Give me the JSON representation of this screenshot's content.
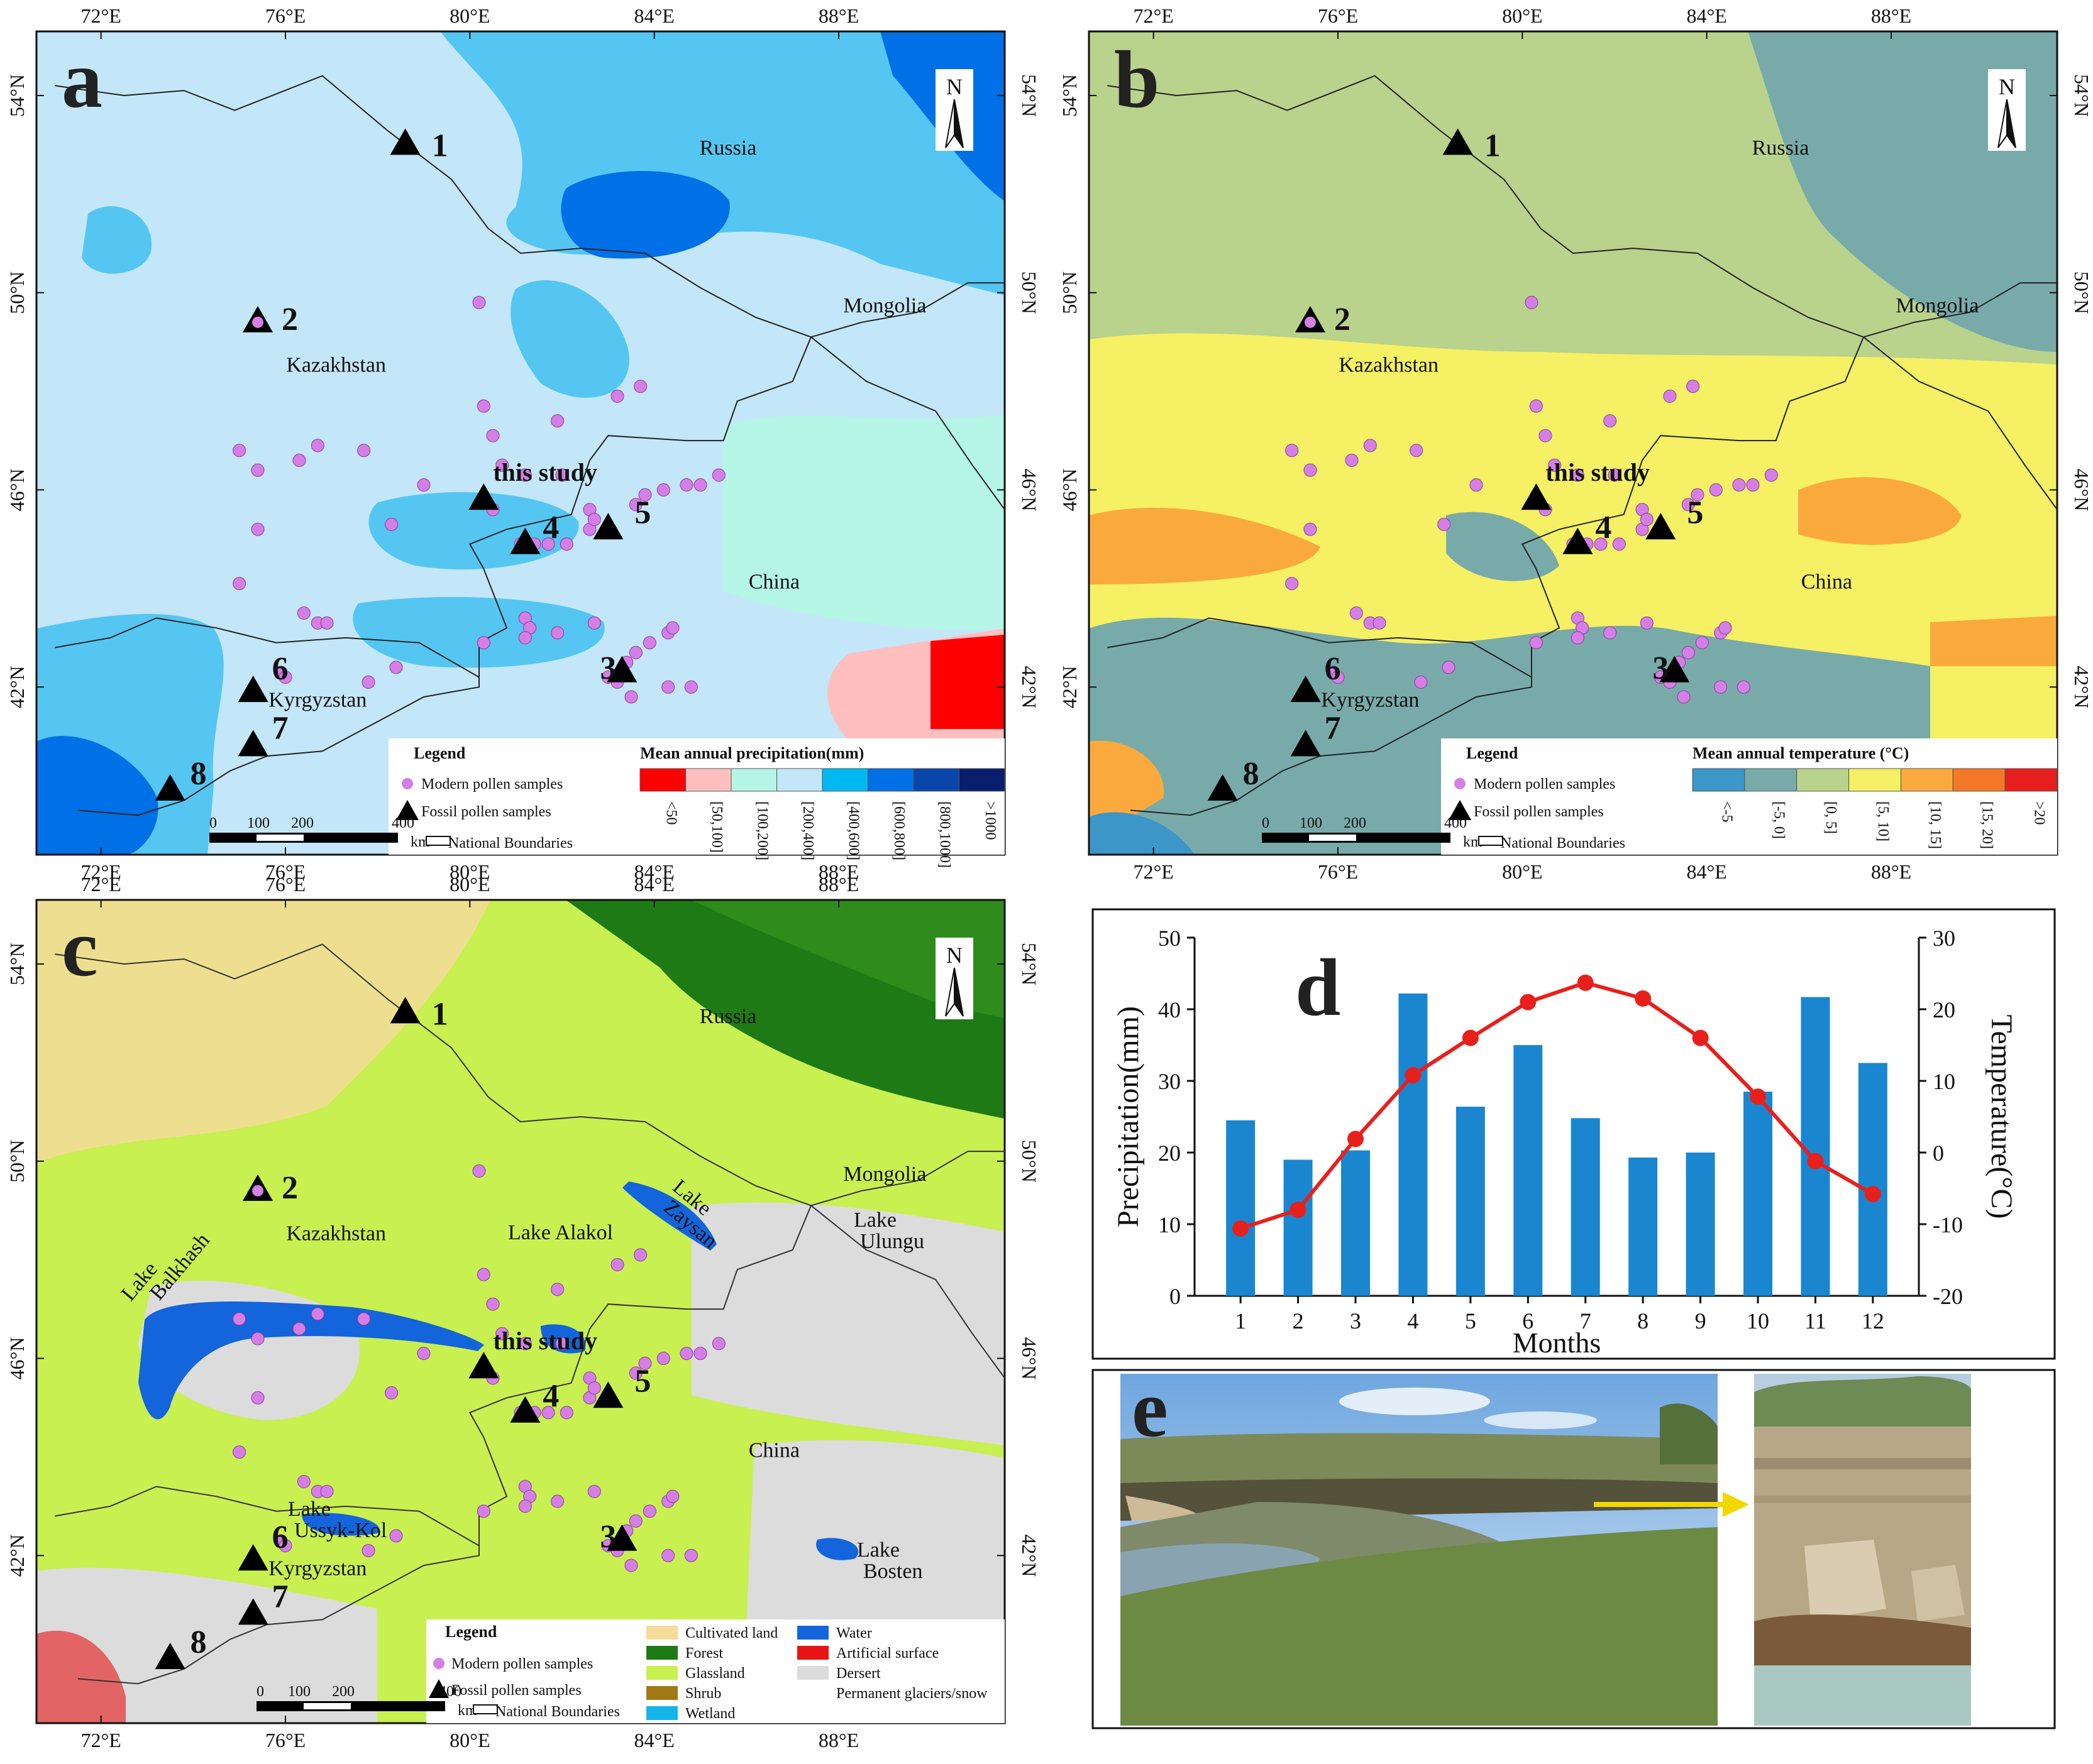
{
  "ticks": {
    "lon": [
      "72°E",
      "76°E",
      "80°E",
      "84°E",
      "88°E"
    ],
    "lat": [
      "54°N",
      "50°N",
      "46°N",
      "42°N"
    ]
  },
  "countries": {
    "russia": "Russia",
    "kazakhstan": "Kazakhstan",
    "mongolia": "Mongolia",
    "china": "China",
    "kyrgyzstan": "Kyrgyzstan"
  },
  "north": "N",
  "sites": {
    "s1": "1",
    "s2": "2",
    "s3": "3",
    "s4": "4",
    "s5": "5",
    "s6": "6",
    "s7": "7",
    "s8": "8",
    "study": "this study"
  },
  "panel_a": {
    "letter": "a",
    "legend_title": "Legend",
    "modern": "Modern pollen samples",
    "fossil": "Fossil pollen samples",
    "boundaries": "National Boundaries",
    "scale": [
      "0",
      "100",
      "200",
      "400",
      "km"
    ],
    "scale_title": "Mean annual precipitation(mm)",
    "classes": [
      "<50",
      "[50,100]",
      "[100,200]",
      "[200,400]",
      "[400,600]",
      "[600,800]",
      "[800,1000]",
      ">1000"
    ],
    "colors": [
      "#ff0000",
      "#ffbfbf",
      "#b4f5e6",
      "#c3e6f8",
      "#00b9f0",
      "#0070e6",
      "#0a46aa",
      "#0a1e6e"
    ]
  },
  "panel_b": {
    "letter": "b",
    "legend_title": "Legend",
    "modern": "Modern pollen samples",
    "fossil": "Fossil pollen samples",
    "boundaries": "National Boundaries",
    "scale": [
      "0",
      "100",
      "200",
      "400",
      "km"
    ],
    "scale_title": "Mean annual temperature (°C)",
    "classes": [
      "<-5",
      "[-5, 0]",
      "[0, 5]",
      "[5, 10]",
      "[10, 15]",
      "[15, 20]",
      ">20"
    ],
    "colors": [
      "#3c96c8",
      "#78aaaa",
      "#b9d28c",
      "#f5f064",
      "#faaa3c",
      "#f57828",
      "#e61e1e"
    ]
  },
  "panel_c": {
    "letter": "c",
    "legend_title": "Legend",
    "modern": "Modern pollen samples",
    "fossil": "Fossil pollen samples",
    "boundaries": "National Boundaries",
    "scale": [
      "0",
      "100",
      "200",
      "400",
      "km"
    ],
    "landcover": [
      {
        "label": "Cultivated land",
        "color": "#f5dc9b"
      },
      {
        "label": "Forest",
        "color": "#1e7a14"
      },
      {
        "label": "Glassland",
        "color": "#c8f050"
      },
      {
        "label": "Shrub",
        "color": "#a07814"
      },
      {
        "label": "Wetland",
        "color": "#14b4e6"
      },
      {
        "label": "Water",
        "color": "#1464dc"
      },
      {
        "label": "Artificial surface",
        "color": "#e61414"
      },
      {
        "label": "Dersert",
        "color": "#dcdcdc"
      },
      {
        "label": "Permanent glaciers/snow",
        "color": "#ffffff"
      }
    ],
    "lakes": {
      "balkhash": "Lake Balkhash",
      "zaysan": "Lake Zaysan",
      "alakol": "Lake Alakol",
      "ulungu": "Lake Ulungu",
      "issyk": "Lake Ussyk-Kol",
      "bosten": "Lake Bosten"
    }
  },
  "panel_d": {
    "letter": "d",
    "ylabel": "Precipitation(mm)",
    "y2label": "Temperature(°C)",
    "xlabel": "Months"
  },
  "panel_e": {
    "letter": "e"
  },
  "chart_data": {
    "type": "bar",
    "categories": [
      "1",
      "2",
      "3",
      "4",
      "5",
      "6",
      "7",
      "8",
      "9",
      "10",
      "11",
      "12"
    ],
    "series": [
      {
        "name": "Precipitation(mm)",
        "type": "bar",
        "axis": "left",
        "values": [
          24.5,
          19.0,
          20.3,
          42.2,
          26.4,
          35.0,
          24.8,
          19.3,
          20.0,
          28.5,
          41.7,
          32.5
        ]
      },
      {
        "name": "Temperature(°C)",
        "type": "line",
        "axis": "right",
        "values": [
          -10.6,
          -8.0,
          1.9,
          10.8,
          16.0,
          21.0,
          23.7,
          21.5,
          16.0,
          7.8,
          -1.2,
          -5.8
        ]
      }
    ],
    "ylim": [
      0,
      50
    ],
    "y2lim": [
      -20,
      30
    ],
    "yticks": [
      0,
      10,
      20,
      30,
      40,
      50
    ],
    "y2ticks": [
      -20,
      -10,
      0,
      10,
      20,
      30
    ],
    "xlabel": "Months",
    "ylabel": "Precipitation(mm)",
    "y2label": "Temperature(°C)",
    "colors": {
      "bar": "#1a86d0",
      "line": "#e8201c"
    }
  }
}
